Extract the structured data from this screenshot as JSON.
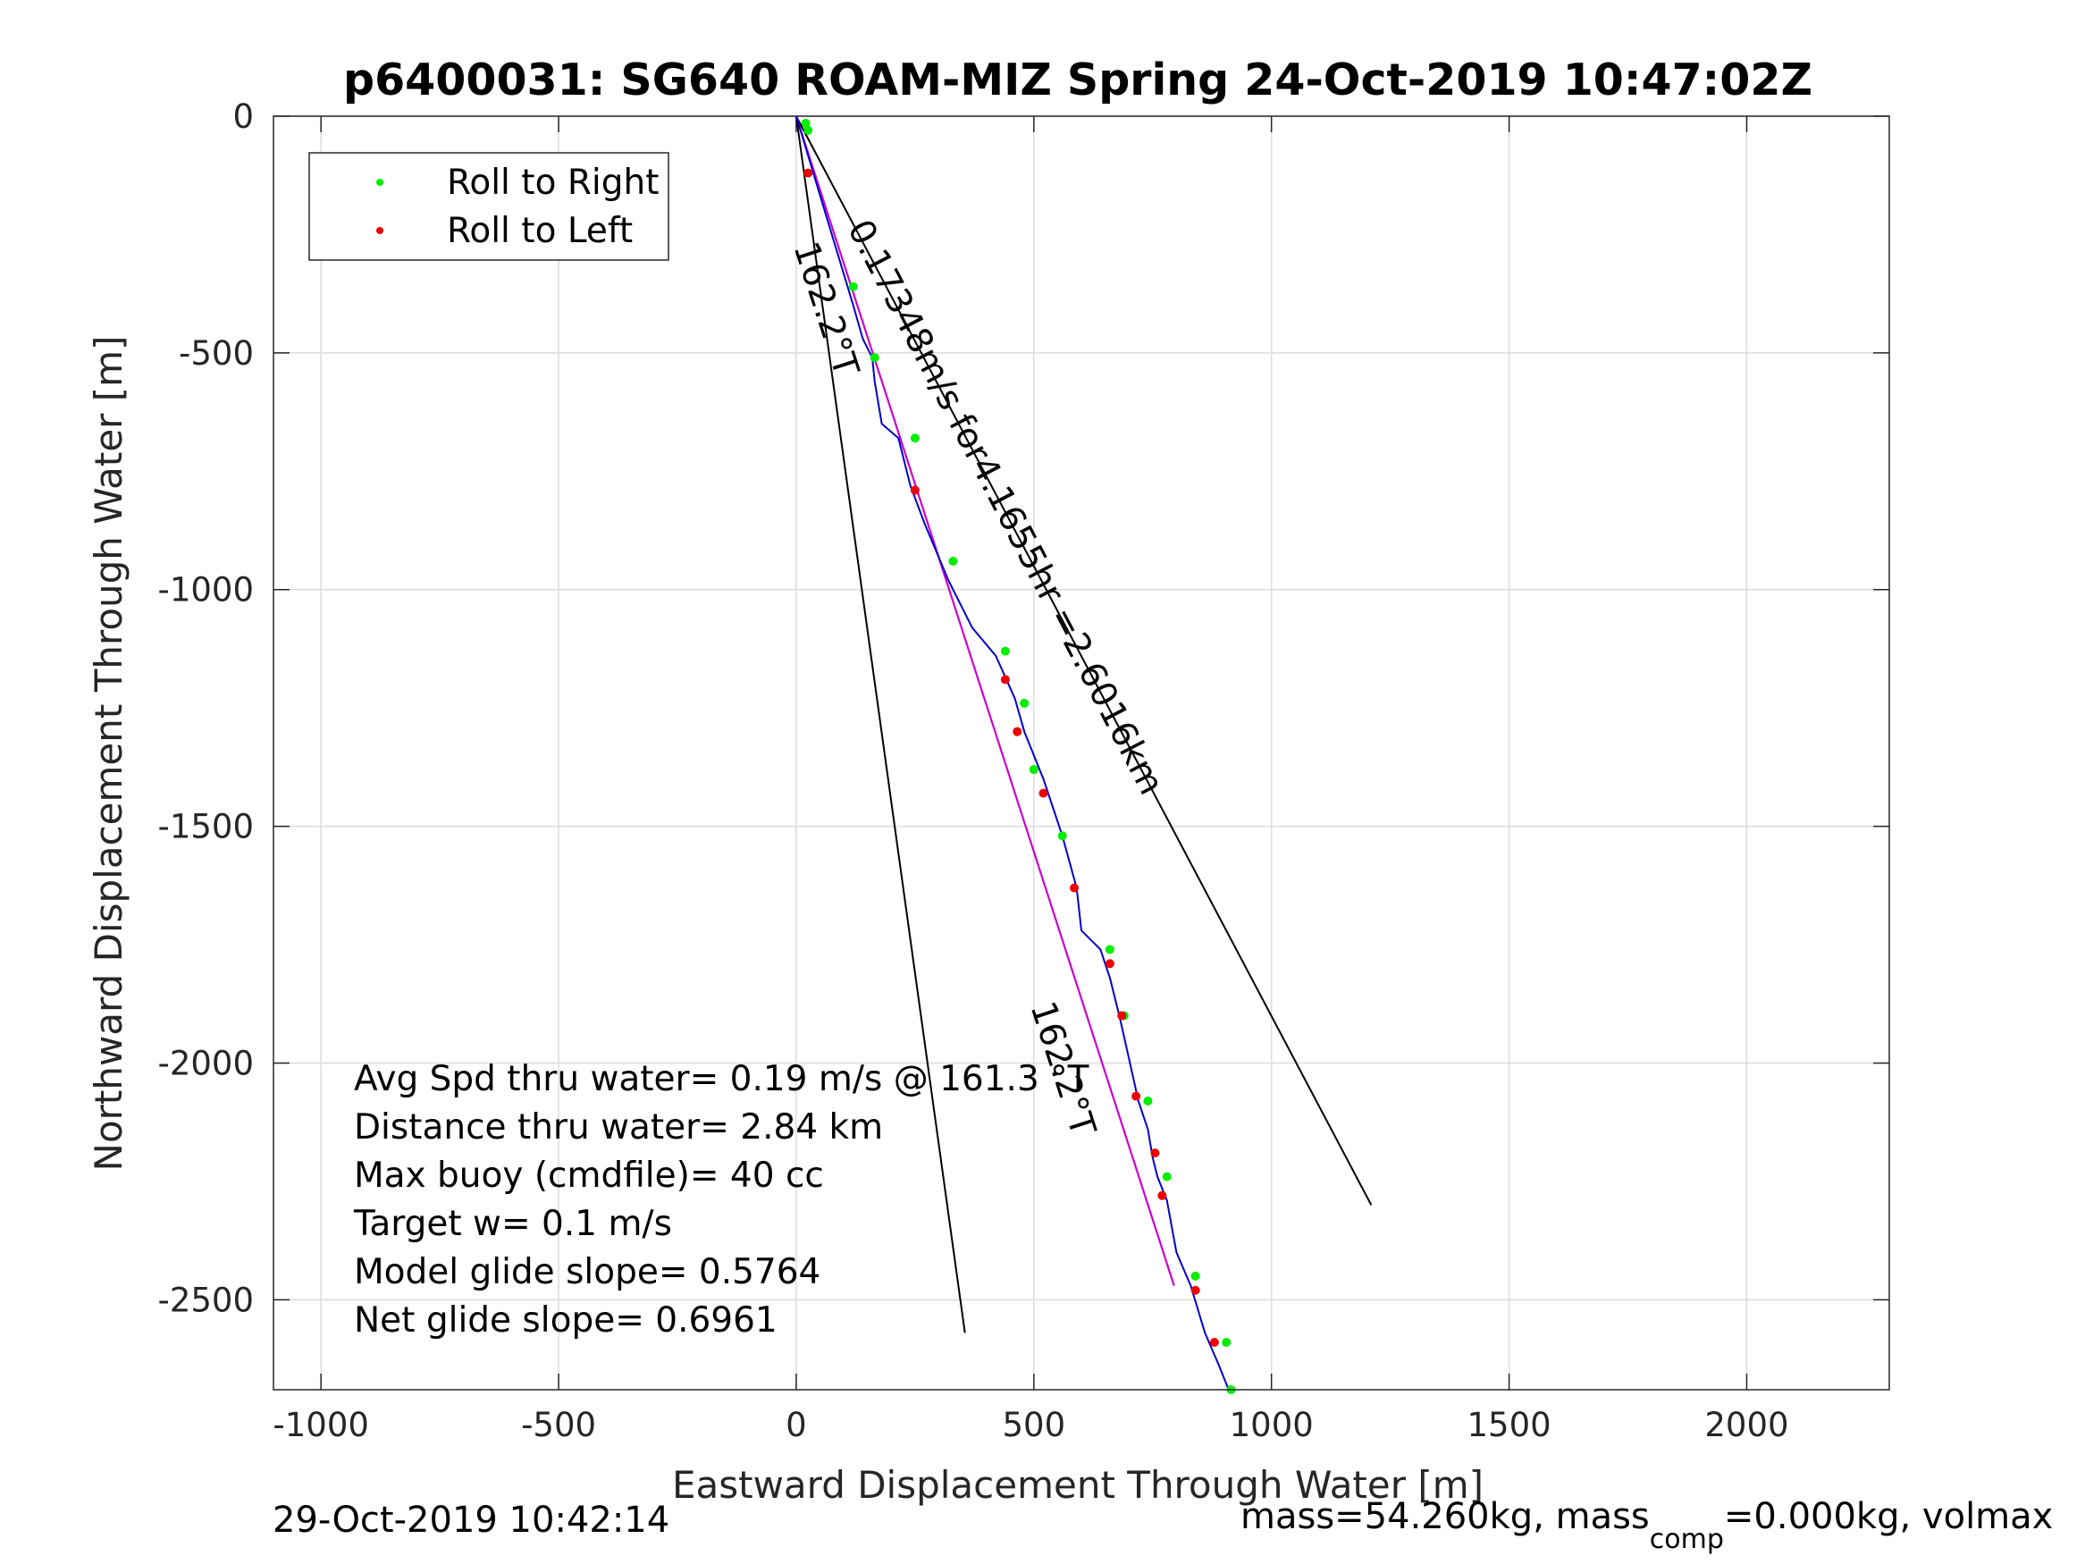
{
  "chart_data": {
    "type": "line",
    "title": "p6400031: SG640 ROAM-MIZ Spring 24-Oct-2019 10:47:02Z",
    "xlabel": "Eastward Displacement Through Water [m]",
    "ylabel": "Northward Displacement Through Water [m]",
    "xlim": [
      -1100,
      2300
    ],
    "ylim": [
      -2690,
      0
    ],
    "xticks": [
      -1000,
      -500,
      0,
      500,
      1000,
      1500,
      2000
    ],
    "xtick_labels": [
      "-1000",
      "-500",
      "0",
      "500",
      "1000",
      "1500",
      "2000"
    ],
    "yticks": [
      0,
      -500,
      -1000,
      -1500,
      -2000,
      -2500
    ],
    "ytick_labels": [
      "0",
      "-500",
      "-1000",
      "-1500",
      "-2000",
      "-2500"
    ],
    "grid": true,
    "legend": {
      "placement": "top-left",
      "entries": [
        {
          "label": "Roll to Right",
          "color": "#00ee00"
        },
        {
          "label": "Roll to Left",
          "color": "#ee0000"
        }
      ]
    },
    "colors": {
      "track": "#0000cc",
      "heading_line": "#cc00cc",
      "reference_lines": "#000000",
      "roll_right": "#00ee00",
      "roll_left": "#ee0000"
    },
    "glider_track": {
      "x": [
        0,
        30,
        60,
        90,
        120,
        140,
        160,
        165,
        180,
        215,
        240,
        270,
        320,
        370,
        420,
        460,
        480,
        520,
        560,
        590,
        600,
        640,
        660,
        680,
        700,
        720,
        740,
        750,
        760,
        780,
        800,
        830,
        860,
        890,
        910
      ],
      "y": [
        0,
        -100,
        -200,
        -300,
        -400,
        -470,
        -510,
        -560,
        -650,
        -680,
        -780,
        -860,
        -980,
        -1080,
        -1140,
        -1230,
        -1300,
        -1400,
        -1520,
        -1630,
        -1720,
        -1760,
        -1820,
        -1900,
        -1990,
        -2080,
        -2140,
        -2200,
        -2240,
        -2290,
        -2400,
        -2470,
        -2570,
        -2640,
        -2690
      ]
    },
    "heading_line": {
      "x": [
        0,
        795
      ],
      "y": [
        0,
        -2470
      ]
    },
    "reference_lines": [
      {
        "x": [
          0,
          355
        ],
        "y": [
          0,
          -2570
        ]
      },
      {
        "x": [
          0,
          1210
        ],
        "y": [
          0,
          -2300
        ]
      }
    ],
    "roll_right_points": {
      "x": [
        20,
        25,
        120,
        165,
        250,
        330,
        440,
        480,
        500,
        560,
        660,
        690,
        740,
        780,
        840,
        905,
        915
      ],
      "y": [
        -15,
        -30,
        -360,
        -510,
        -680,
        -940,
        -1130,
        -1240,
        -1380,
        -1520,
        -1760,
        -1900,
        -2080,
        -2240,
        -2450,
        -2590,
        -2690
      ]
    },
    "roll_left_points": {
      "x": [
        25,
        250,
        440,
        465,
        520,
        585,
        660,
        685,
        715,
        755,
        770,
        840,
        880
      ],
      "y": [
        -120,
        -790,
        -1190,
        -1300,
        -1430,
        -1630,
        -1790,
        -1900,
        -2070,
        -2190,
        -2280,
        -2480,
        -2590
      ]
    },
    "annotations": {
      "summary_line": "0.17348m/s for4.1655hr =2.6016km",
      "heading_top": "162.2°T",
      "heading_bottom": "162.2°T",
      "stats": [
        "Avg Spd thru water=  0.19 m/s @ 161.3 °T",
        "Distance thru water=  2.84 km",
        "Max buoy (cmdfile)= 40 cc",
        "Target w= 0.1 m/s",
        "Model glide slope= 0.5764",
        "Net glide slope= 0.6961"
      ]
    },
    "footer": {
      "timestamp": "29-Oct-2019 10:42:14",
      "mass_prefix": "mass=54.260kg, mass",
      "mass_sub": "comp",
      "mass_suffix": "=0.000kg, volmax"
    }
  }
}
